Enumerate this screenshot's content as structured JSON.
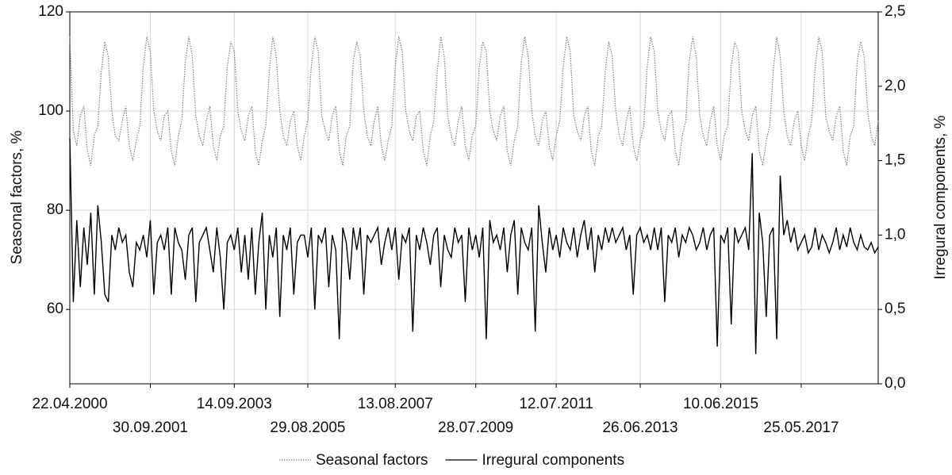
{
  "chart_data": {
    "type": "line",
    "ylabel": "Seasonal factors, %",
    "y2label": "Irregural components, %",
    "xlim": [
      0,
      231
    ],
    "xticks": [
      {
        "value": 0,
        "label": "22.04.2000"
      },
      {
        "value": 23,
        "label": "30.09.2001"
      },
      {
        "value": 47,
        "label": "14.09.2003"
      },
      {
        "value": 68,
        "label": "29.08.2005"
      },
      {
        "value": 93,
        "label": "13.08.2007"
      },
      {
        "value": 116,
        "label": "28.07.2009"
      },
      {
        "value": 139,
        "label": "12.07.2011"
      },
      {
        "value": 163,
        "label": "26.06.2013"
      },
      {
        "value": 186,
        "label": "10.06.2015"
      },
      {
        "value": 209,
        "label": "25.05.2017"
      }
    ],
    "ylim": [
      45,
      120
    ],
    "yticks": [
      60,
      80,
      100,
      120
    ],
    "y2lim": [
      0,
      2.5
    ],
    "y2ticks": [
      {
        "value": 0,
        "label": "0,0"
      },
      {
        "value": 0.5,
        "label": "0,5"
      },
      {
        "value": 1,
        "label": "1,0"
      },
      {
        "value": 1.5,
        "label": "1,5"
      },
      {
        "value": 2,
        "label": "2,0"
      },
      {
        "value": 2.5,
        "label": "2,5"
      }
    ],
    "grid": true,
    "legend": "bottom",
    "series": [
      {
        "name": "Seasonal factors",
        "color": "#808080",
        "style": "dotted",
        "values": [
          115,
          96,
          93,
          99,
          101,
          92,
          89,
          95,
          97,
          108,
          114,
          111,
          100,
          95,
          94,
          98,
          101,
          93,
          90,
          94,
          97,
          109,
          115,
          112,
          100,
          96,
          94,
          99,
          100,
          92,
          89,
          95,
          98,
          110,
          115,
          111,
          99,
          95,
          93,
          98,
          101,
          93,
          90,
          95,
          97,
          109,
          114,
          112,
          100,
          96,
          94,
          99,
          101,
          92,
          89,
          94,
          97,
          108,
          115,
          111,
          100,
          95,
          93,
          98,
          100,
          93,
          90,
          95,
          98,
          109,
          115,
          112,
          99,
          96,
          94,
          99,
          101,
          92,
          89,
          95,
          97,
          110,
          114,
          111,
          100,
          95,
          93,
          98,
          101,
          93,
          90,
          94,
          97,
          109,
          115,
          112,
          100,
          96,
          94,
          99,
          100,
          92,
          89,
          95,
          98,
          108,
          115,
          111,
          99,
          95,
          93,
          98,
          101,
          93,
          90,
          95,
          97,
          109,
          114,
          112,
          100,
          96,
          94,
          99,
          101,
          92,
          89,
          94,
          97,
          110,
          115,
          111,
          100,
          95,
          93,
          98,
          100,
          93,
          90,
          95,
          98,
          109,
          115,
          112,
          99,
          96,
          94,
          99,
          101,
          92,
          89,
          95,
          97,
          108,
          114,
          111,
          100,
          95,
          93,
          98,
          101,
          93,
          90,
          94,
          97,
          109,
          115,
          112,
          100,
          96,
          94,
          99,
          100,
          92,
          89,
          95,
          98,
          110,
          115,
          111,
          99,
          95,
          93,
          98,
          101,
          93,
          90,
          95,
          97,
          109,
          114,
          112,
          100,
          96,
          94,
          99,
          101,
          92,
          89,
          94,
          97,
          108,
          115,
          111,
          100,
          95,
          93,
          98,
          100,
          93,
          90,
          95,
          98,
          109,
          115,
          112,
          99,
          96,
          94,
          99,
          101,
          92,
          89,
          95,
          97,
          110,
          114,
          111,
          100,
          95,
          93,
          98
        ]
      },
      {
        "name": "Irregural components",
        "color": "#000000",
        "style": "solid",
        "axis": "y2",
        "values": [
          1.65,
          0.55,
          1.1,
          0.65,
          1.05,
          0.8,
          1.15,
          0.6,
          1.2,
          0.95,
          0.6,
          0.55,
          1.0,
          0.9,
          1.05,
          0.95,
          1.0,
          0.75,
          0.65,
          0.95,
          0.9,
          1.0,
          0.85,
          1.1,
          0.6,
          0.95,
          1.0,
          0.9,
          1.05,
          0.6,
          1.05,
          0.95,
          0.9,
          0.7,
          1.0,
          1.05,
          0.55,
          0.95,
          1.0,
          1.05,
          0.9,
          0.75,
          1.05,
          0.85,
          0.5,
          0.95,
          1.0,
          0.9,
          1.05,
          0.75,
          1.0,
          0.7,
          1.05,
          0.6,
          0.95,
          1.15,
          0.5,
          1.0,
          0.85,
          1.05,
          0.45,
          1.0,
          0.9,
          1.05,
          0.6,
          0.95,
          1.0,
          1.0,
          0.85,
          1.05,
          0.5,
          1.0,
          0.95,
          1.05,
          0.65,
          1.0,
          0.9,
          0.3,
          1.05,
          0.95,
          0.7,
          1.05,
          0.9,
          1.05,
          0.6,
          1.0,
          0.95,
          1.0,
          1.05,
          0.8,
          0.95,
          1.05,
          0.9,
          1.05,
          0.7,
          1.0,
          0.95,
          1.05,
          0.35,
          1.0,
          0.9,
          1.05,
          0.95,
          0.8,
          1.0,
          1.05,
          0.65,
          1.0,
          0.9,
          0.85,
          1.05,
          0.95,
          1.0,
          0.55,
          1.05,
          0.9,
          1.0,
          0.85,
          1.05,
          0.3,
          1.1,
          0.95,
          1.0,
          0.9,
          1.05,
          0.75,
          1.0,
          1.1,
          0.6,
          1.05,
          0.95,
          0.9,
          1.05,
          0.35,
          1.2,
          0.95,
          0.75,
          1.05,
          0.9,
          1.0,
          0.85,
          1.05,
          0.95,
          0.9,
          1.05,
          0.85,
          1.0,
          1.1,
          0.9,
          1.05,
          0.75,
          1.0,
          0.9,
          1.05,
          0.95,
          1.05,
          0.95,
          1.0,
          1.05,
          0.9,
          1.0,
          0.6,
          1.0,
          1.05,
          0.95,
          1.0,
          0.9,
          1.05,
          0.9,
          1.05,
          0.55,
          1.0,
          0.95,
          1.05,
          0.85,
          1.0,
          0.95,
          1.05,
          1.0,
          0.9,
          0.95,
          1.05,
          0.9,
          1.0,
          1.05,
          0.25,
          1.0,
          0.95,
          1.05,
          0.4,
          1.05,
          0.95,
          1.0,
          1.05,
          0.9,
          1.55,
          0.2,
          1.15,
          0.95,
          0.45,
          1.0,
          1.05,
          0.3,
          1.4,
          1.0,
          1.1,
          0.95,
          1.05,
          0.9,
          0.95,
          1.0,
          0.88,
          0.92,
          1.05,
          0.9,
          1.0,
          0.95,
          0.88,
          0.95,
          1.05,
          0.9,
          1.0,
          0.92,
          1.05,
          0.95,
          0.9,
          1.0,
          0.92,
          0.9,
          0.95,
          0.88,
          0.92
        ]
      }
    ]
  }
}
